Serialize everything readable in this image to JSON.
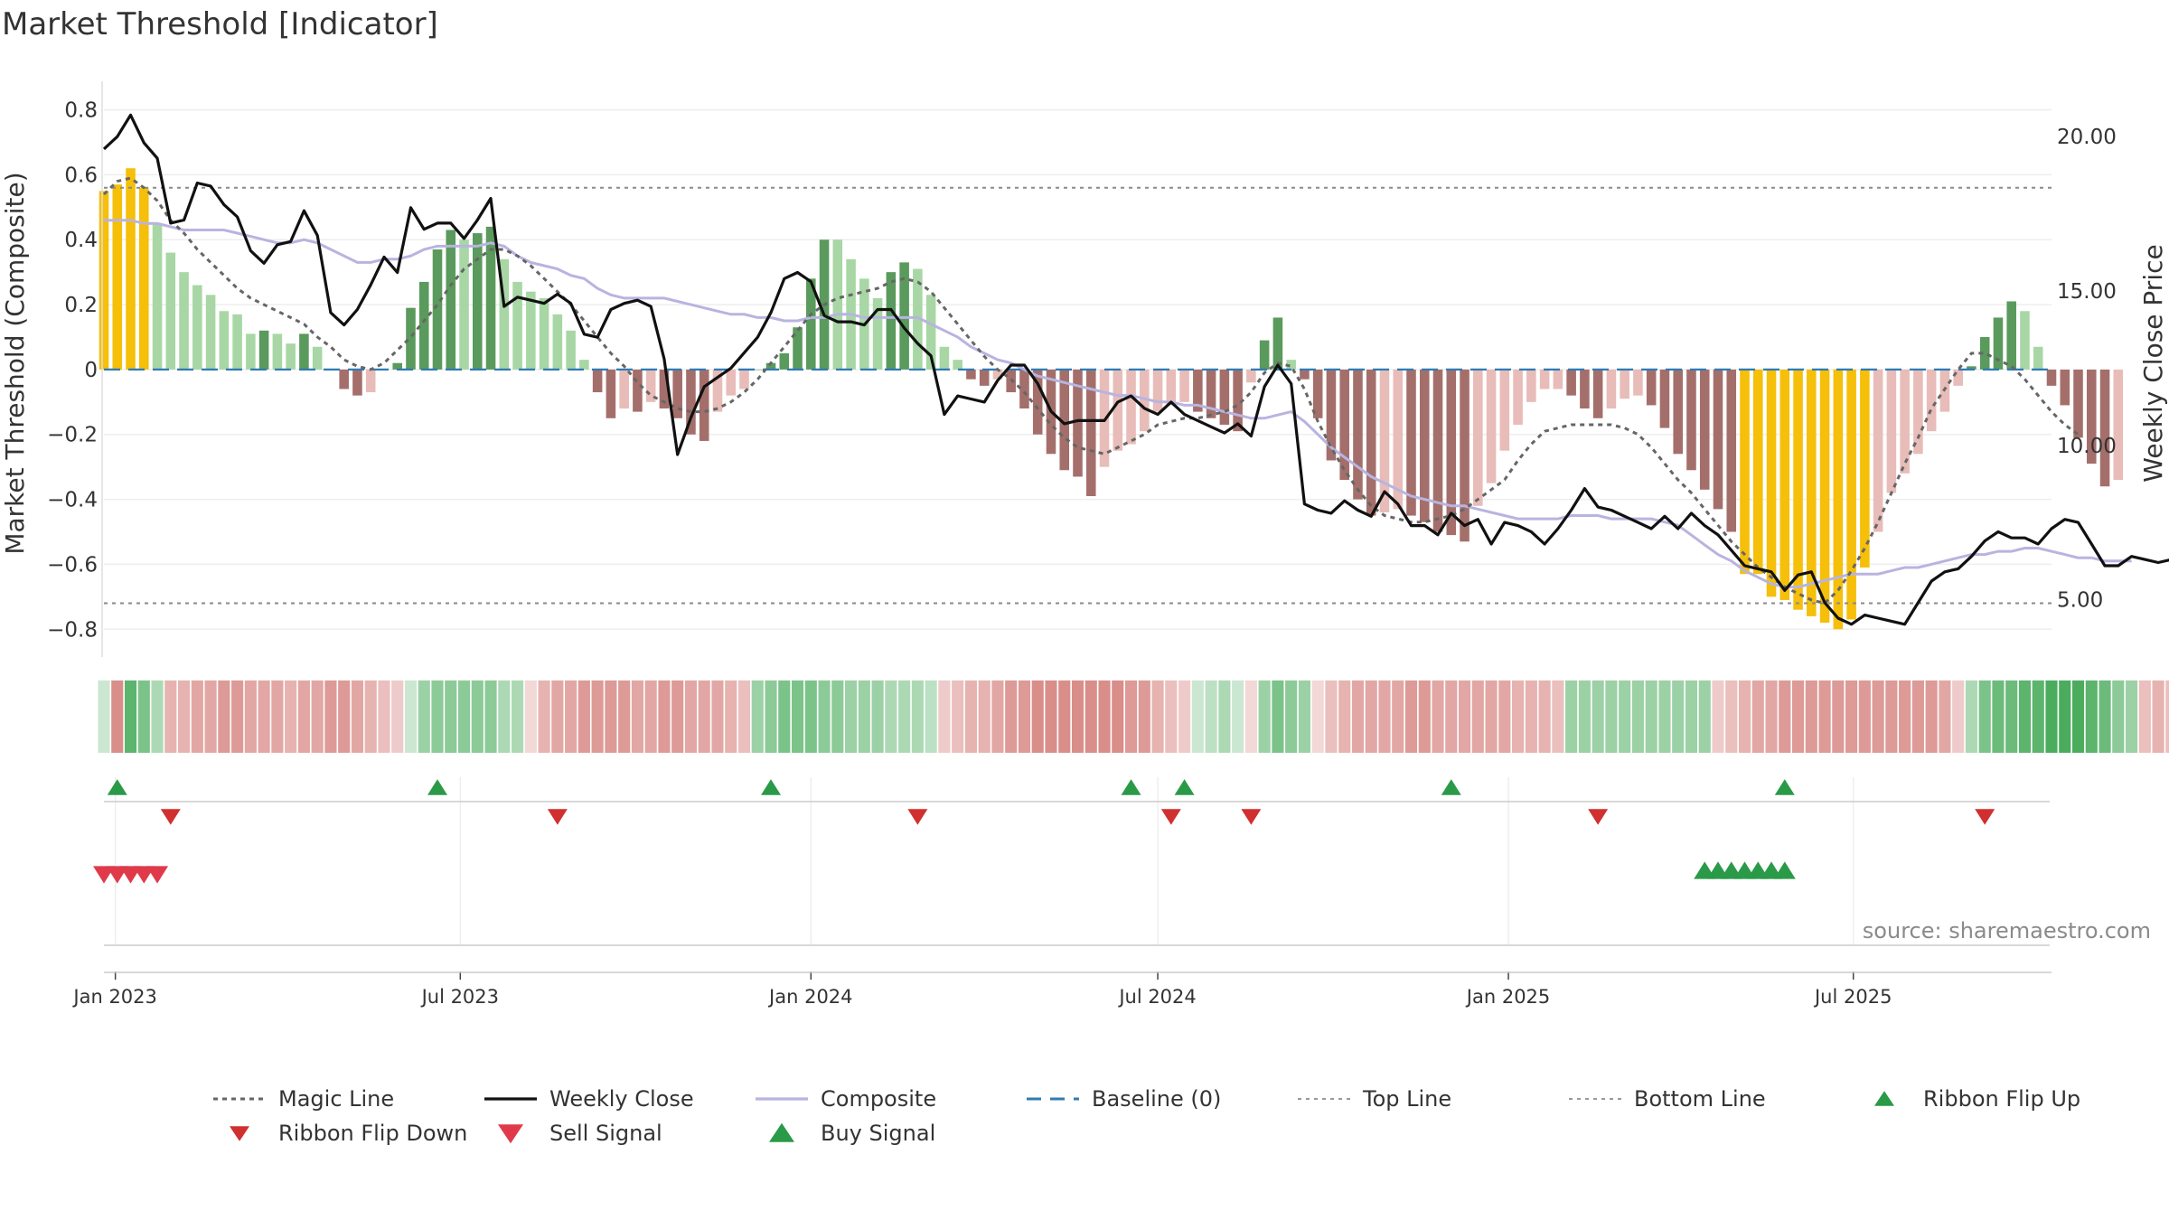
{
  "chart_data": {
    "type": "bar",
    "title": "Market Threshold [Indicator]",
    "ylabel": "Market Threshold (Composite)",
    "y2label": "Weekly Close Price",
    "source": "source: sharemaestro.com",
    "ylim": [
      -0.88,
      0.86
    ],
    "y2lim": [
      3.2,
      21.5
    ],
    "yticks": [
      0.8,
      0.6,
      0.4,
      0.2,
      0,
      -0.2,
      -0.4,
      -0.6,
      -0.8
    ],
    "yticklabels": [
      "0.8",
      "0.6",
      "0.4",
      "0.2",
      "0",
      "−0.2",
      "−0.4",
      "−0.6",
      "−0.8"
    ],
    "y2ticks": [
      20,
      15,
      10,
      5
    ],
    "y2ticklabels": [
      "20.00",
      "15.00",
      "10.00",
      "5.00"
    ],
    "x_start": "2022-12-26",
    "x_step_days": 7,
    "x_end": "2025-10-13",
    "xticks": [
      {
        "date": "2023-01-01",
        "label": "Jan 2023"
      },
      {
        "date": "2023-07-01",
        "label": "Jul 2023"
      },
      {
        "date": "2024-01-01",
        "label": "Jan 2024"
      },
      {
        "date": "2024-07-01",
        "label": "Jul 2024"
      },
      {
        "date": "2025-01-01",
        "label": "Jan 2025"
      },
      {
        "date": "2025-07-01",
        "label": "Jul 2025"
      }
    ],
    "top_line": 0.56,
    "bottom_line": -0.72,
    "bars": [
      0.55,
      0.57,
      0.62,
      0.56,
      0.45,
      0.36,
      0.3,
      0.26,
      0.23,
      0.18,
      0.17,
      0.11,
      0.12,
      0.11,
      0.08,
      0.11,
      0.07,
      0.0,
      -0.06,
      -0.08,
      -0.07,
      0.0,
      0.02,
      0.19,
      0.27,
      0.37,
      0.43,
      0.4,
      0.42,
      0.44,
      0.34,
      0.27,
      0.24,
      0.22,
      0.17,
      0.12,
      0.03,
      -0.07,
      -0.15,
      -0.12,
      -0.13,
      -0.1,
      -0.12,
      -0.15,
      -0.2,
      -0.22,
      -0.13,
      -0.08,
      -0.06,
      0.0,
      0.02,
      0.05,
      0.13,
      0.28,
      0.4,
      0.4,
      0.34,
      0.28,
      0.22,
      0.3,
      0.33,
      0.31,
      0.23,
      0.07,
      0.03,
      -0.03,
      -0.05,
      -0.03,
      -0.07,
      -0.12,
      -0.2,
      -0.26,
      -0.31,
      -0.33,
      -0.39,
      -0.3,
      -0.25,
      -0.23,
      -0.19,
      -0.13,
      -0.11,
      -0.1,
      -0.13,
      -0.15,
      -0.17,
      -0.19,
      -0.04,
      0.09,
      0.16,
      0.03,
      -0.03,
      -0.15,
      -0.28,
      -0.34,
      -0.4,
      -0.45,
      -0.44,
      -0.43,
      -0.45,
      -0.47,
      -0.5,
      -0.51,
      -0.53,
      -0.42,
      -0.35,
      -0.25,
      -0.17,
      -0.1,
      -0.06,
      -0.06,
      -0.08,
      -0.12,
      -0.15,
      -0.12,
      -0.09,
      -0.08,
      -0.11,
      -0.18,
      -0.26,
      -0.31,
      -0.37,
      -0.43,
      -0.5,
      -0.63,
      -0.63,
      -0.7,
      -0.71,
      -0.74,
      -0.76,
      -0.78,
      -0.8,
      -0.77,
      -0.61,
      -0.5,
      -0.38,
      -0.32,
      -0.26,
      -0.19,
      -0.13,
      -0.05,
      0.01,
      0.1,
      0.16,
      0.21,
      0.18,
      0.07,
      -0.05,
      -0.11,
      -0.21,
      -0.29,
      -0.36,
      -0.34
    ],
    "weekly_close": [
      19.6,
      20.0,
      20.7,
      19.8,
      19.3,
      17.2,
      17.3,
      18.5,
      18.4,
      17.8,
      17.4,
      16.3,
      15.9,
      16.5,
      16.6,
      17.6,
      16.8,
      14.3,
      13.9,
      14.4,
      15.2,
      16.1,
      15.6,
      17.7,
      17.0,
      17.2,
      17.2,
      16.7,
      17.3,
      18.0,
      14.5,
      14.8,
      14.7,
      14.6,
      14.9,
      14.6,
      13.6,
      13.5,
      14.4,
      14.6,
      14.7,
      14.5,
      12.8,
      9.7,
      10.9,
      11.9,
      12.2,
      12.5,
      13.0,
      13.5,
      14.3,
      15.4,
      15.6,
      15.3,
      14.2,
      14.0,
      14.0,
      13.9,
      14.4,
      14.4,
      13.8,
      13.3,
      12.9,
      11.0,
      11.6,
      11.5,
      11.4,
      12.1,
      12.6,
      12.6,
      12.0,
      11.1,
      10.7,
      10.8,
      10.8,
      10.8,
      11.4,
      11.6,
      11.2,
      11.0,
      11.4,
      11.0,
      10.8,
      10.6,
      10.4,
      10.7,
      10.3,
      11.9,
      12.6,
      12.0,
      8.1,
      7.9,
      7.8,
      8.2,
      7.9,
      7.7,
      8.5,
      8.1,
      7.4,
      7.4,
      7.1,
      7.8,
      7.4,
      7.6,
      6.8,
      7.5,
      7.4,
      7.2,
      6.8,
      7.3,
      7.9,
      8.6,
      8.0,
      7.9,
      7.7,
      7.5,
      7.3,
      7.7,
      7.3,
      7.8,
      7.4,
      7.1,
      6.6,
      6.1,
      6.0,
      5.9,
      5.3,
      5.8,
      5.9,
      4.9,
      4.4,
      4.2,
      4.5,
      4.4,
      4.3,
      4.2,
      4.9,
      5.6,
      5.9,
      6.0,
      6.4,
      6.9,
      7.2,
      7.0,
      7.0,
      6.8,
      7.3,
      7.6,
      7.5,
      6.8,
      6.1,
      6.1,
      6.4,
      6.3,
      6.2,
      6.3,
      6.6
    ],
    "composite": [
      0.46,
      0.46,
      0.46,
      0.45,
      0.45,
      0.44,
      0.43,
      0.43,
      0.43,
      0.43,
      0.42,
      0.41,
      0.4,
      0.39,
      0.39,
      0.4,
      0.39,
      0.37,
      0.35,
      0.33,
      0.33,
      0.34,
      0.34,
      0.35,
      0.37,
      0.38,
      0.38,
      0.38,
      0.38,
      0.39,
      0.38,
      0.35,
      0.33,
      0.32,
      0.31,
      0.29,
      0.28,
      0.25,
      0.23,
      0.22,
      0.22,
      0.22,
      0.22,
      0.21,
      0.2,
      0.19,
      0.18,
      0.17,
      0.17,
      0.16,
      0.16,
      0.15,
      0.15,
      0.16,
      0.16,
      0.17,
      0.17,
      0.16,
      0.16,
      0.16,
      0.16,
      0.16,
      0.14,
      0.12,
      0.1,
      0.07,
      0.05,
      0.03,
      0.02,
      0.0,
      -0.02,
      -0.03,
      -0.04,
      -0.05,
      -0.06,
      -0.07,
      -0.08,
      -0.08,
      -0.09,
      -0.1,
      -0.1,
      -0.11,
      -0.11,
      -0.12,
      -0.13,
      -0.14,
      -0.15,
      -0.15,
      -0.14,
      -0.13,
      -0.16,
      -0.2,
      -0.24,
      -0.27,
      -0.3,
      -0.33,
      -0.35,
      -0.37,
      -0.39,
      -0.4,
      -0.41,
      -0.42,
      -0.42,
      -0.43,
      -0.44,
      -0.45,
      -0.46,
      -0.46,
      -0.46,
      -0.46,
      -0.45,
      -0.45,
      -0.45,
      -0.46,
      -0.46,
      -0.46,
      -0.46,
      -0.47,
      -0.48,
      -0.51,
      -0.54,
      -0.57,
      -0.59,
      -0.62,
      -0.64,
      -0.66,
      -0.67,
      -0.67,
      -0.66,
      -0.65,
      -0.64,
      -0.63,
      -0.63,
      -0.63,
      -0.62,
      -0.61,
      -0.61,
      -0.6,
      -0.59,
      -0.58,
      -0.57,
      -0.57,
      -0.56,
      -0.56,
      -0.55,
      -0.55,
      -0.56,
      -0.57,
      -0.58,
      -0.58,
      -0.59,
      -0.59,
      -0.59
    ],
    "magic_line": [
      0.54,
      0.58,
      0.59,
      0.56,
      0.52,
      0.46,
      0.42,
      0.37,
      0.33,
      0.29,
      0.25,
      0.22,
      0.2,
      0.18,
      0.16,
      0.14,
      0.1,
      0.07,
      0.03,
      0.01,
      0.0,
      0.02,
      0.06,
      0.1,
      0.15,
      0.2,
      0.26,
      0.31,
      0.34,
      0.37,
      0.37,
      0.35,
      0.32,
      0.28,
      0.24,
      0.2,
      0.15,
      0.1,
      0.05,
      0.01,
      -0.04,
      -0.08,
      -0.1,
      -0.12,
      -0.13,
      -0.13,
      -0.12,
      -0.1,
      -0.07,
      -0.03,
      0.02,
      0.07,
      0.12,
      0.17,
      0.2,
      0.22,
      0.23,
      0.24,
      0.25,
      0.27,
      0.28,
      0.27,
      0.24,
      0.19,
      0.14,
      0.09,
      0.04,
      0.0,
      -0.03,
      -0.07,
      -0.12,
      -0.17,
      -0.21,
      -0.24,
      -0.25,
      -0.26,
      -0.24,
      -0.22,
      -0.2,
      -0.17,
      -0.16,
      -0.15,
      -0.15,
      -0.14,
      -0.13,
      -0.11,
      -0.07,
      -0.01,
      0.02,
      0.01,
      -0.06,
      -0.16,
      -0.24,
      -0.31,
      -0.37,
      -0.42,
      -0.45,
      -0.46,
      -0.47,
      -0.47,
      -0.46,
      -0.45,
      -0.43,
      -0.4,
      -0.37,
      -0.34,
      -0.28,
      -0.23,
      -0.19,
      -0.18,
      -0.17,
      -0.17,
      -0.17,
      -0.17,
      -0.18,
      -0.2,
      -0.24,
      -0.29,
      -0.34,
      -0.38,
      -0.43,
      -0.48,
      -0.53,
      -0.57,
      -0.61,
      -0.64,
      -0.67,
      -0.69,
      -0.71,
      -0.72,
      -0.68,
      -0.62,
      -0.55,
      -0.47,
      -0.38,
      -0.29,
      -0.21,
      -0.12,
      -0.06,
      0.0,
      0.05,
      0.05,
      0.03,
      0.01,
      -0.03,
      -0.08,
      -0.13,
      -0.17,
      -0.2
    ],
    "ribbon": [
      0.1,
      -0.7,
      0.8,
      0.6,
      0.3,
      -0.4,
      -0.4,
      -0.5,
      -0.5,
      -0.6,
      -0.6,
      -0.5,
      -0.5,
      -0.5,
      -0.4,
      -0.5,
      -0.5,
      -0.6,
      -0.6,
      -0.5,
      -0.4,
      -0.3,
      -0.2,
      0.1,
      0.4,
      0.5,
      0.5,
      0.5,
      0.5,
      0.5,
      0.3,
      0.3,
      -0.1,
      -0.4,
      -0.5,
      -0.5,
      -0.6,
      -0.6,
      -0.6,
      -0.6,
      -0.5,
      -0.5,
      -0.6,
      -0.6,
      -0.5,
      -0.5,
      -0.5,
      -0.4,
      -0.3,
      0.4,
      0.5,
      0.6,
      0.6,
      0.6,
      0.5,
      0.5,
      0.4,
      0.4,
      0.4,
      0.3,
      0.3,
      0.3,
      0.2,
      -0.2,
      -0.3,
      -0.4,
      -0.4,
      -0.5,
      -0.6,
      -0.6,
      -0.7,
      -0.7,
      -0.7,
      -0.7,
      -0.7,
      -0.7,
      -0.7,
      -0.6,
      -0.6,
      -0.4,
      -0.3,
      -0.2,
      0.1,
      0.2,
      0.3,
      0.1,
      -0.1,
      0.4,
      0.6,
      0.5,
      0.4,
      -0.1,
      -0.3,
      -0.4,
      -0.5,
      -0.5,
      -0.5,
      -0.5,
      -0.6,
      -0.6,
      -0.5,
      -0.5,
      -0.5,
      -0.5,
      -0.5,
      -0.5,
      -0.4,
      -0.4,
      -0.4,
      -0.3,
      0.4,
      0.4,
      0.4,
      0.4,
      0.4,
      0.4,
      0.4,
      0.4,
      0.4,
      0.4,
      0.4,
      -0.2,
      -0.3,
      -0.4,
      -0.5,
      -0.5,
      -0.6,
      -0.6,
      -0.6,
      -0.6,
      -0.6,
      -0.6,
      -0.6,
      -0.6,
      -0.6,
      -0.6,
      -0.6,
      -0.6,
      -0.5,
      -0.2,
      0.3,
      0.6,
      0.7,
      0.7,
      0.8,
      0.8,
      0.9,
      0.9,
      0.9,
      0.8,
      0.7,
      0.5,
      0.4,
      -0.3,
      -0.4,
      -0.3
    ],
    "ribbon_flip_up": [
      1,
      25,
      50,
      77,
      81,
      101,
      126
    ],
    "ribbon_flip_down": [
      5,
      34,
      61,
      80,
      86,
      112,
      141
    ],
    "sell_signal": [
      0,
      1,
      2,
      3,
      4
    ],
    "buy_signal": [
      120,
      121,
      122,
      123,
      124,
      125,
      126
    ],
    "legend": [
      {
        "label": "Magic Line",
        "kind": "dotted",
        "color": "#666666"
      },
      {
        "label": "Weekly Close",
        "kind": "solid",
        "color": "#111111"
      },
      {
        "label": "Composite",
        "kind": "solid",
        "color": "#b8b4e0"
      },
      {
        "label": "Baseline (0)",
        "kind": "dashed",
        "color": "#2f7bb5"
      },
      {
        "label": "Top Line",
        "kind": "dotted-thin",
        "color": "#999999"
      },
      {
        "label": "Bottom Line",
        "kind": "dotted-thin",
        "color": "#999999"
      },
      {
        "label": "Ribbon Flip Up",
        "kind": "tri-up",
        "color": "#2a9a48"
      },
      {
        "label": "Ribbon Flip Down",
        "kind": "tri-down",
        "color": "#d03030"
      },
      {
        "label": "Sell Signal",
        "kind": "tri-down",
        "color": "#e03a4a"
      },
      {
        "label": "Buy Signal",
        "kind": "tri-up",
        "color": "#2a9a48"
      }
    ],
    "colors": {
      "extreme": "#f5bf0a",
      "pos_strong": "#5a9a5c",
      "pos_light": "#a8d7a5",
      "neg_strong": "#a46f6b",
      "neg_light": "#e8bcb8",
      "baseline": "#2f7bb5",
      "composite": "#b8b4e0",
      "close": "#111111"
    }
  }
}
